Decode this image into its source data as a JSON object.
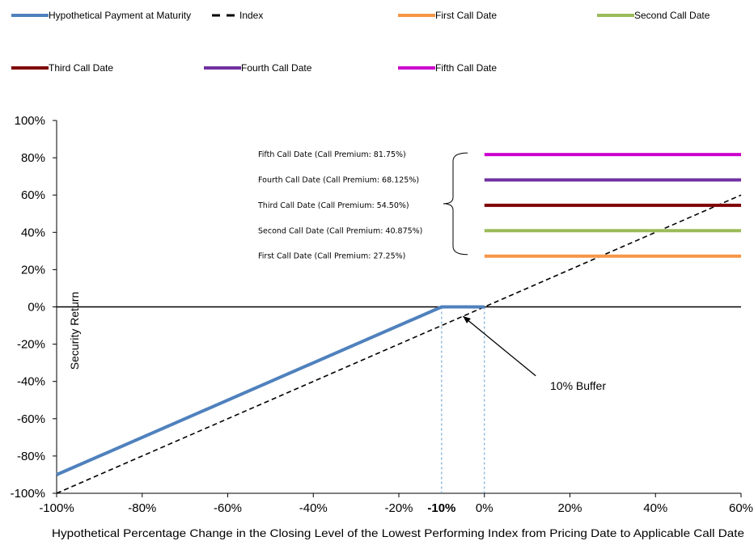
{
  "chart_data": {
    "type": "line",
    "xlabel": "Hypothetical Percentage Change in the Closing Level of the Lowest Performing Index from Pricing Date to Applicable Call Date",
    "ylabel": "Security Return",
    "xlim": [
      -100,
      60
    ],
    "ylim": [
      -100,
      100
    ],
    "x_ticks": [
      "-100%",
      "-80%",
      "-60%",
      "-40%",
      "-20%",
      "-10%",
      "0%",
      "20%",
      "40%",
      "60%"
    ],
    "y_ticks": [
      "100%",
      "80%",
      "60%",
      "40%",
      "20%",
      "0%",
      "-20%",
      "-40%",
      "-60%",
      "-80%",
      "-100%"
    ],
    "grid": false,
    "legend_position": "top",
    "series": [
      {
        "name": "Hypothetical Payment at Maturity",
        "color": "#4f81bd",
        "style": "solid",
        "points": [
          [
            -100,
            -90
          ],
          [
            -10,
            0
          ],
          [
            0,
            0
          ]
        ]
      },
      {
        "name": "Index",
        "color": "#000000",
        "style": "dashed",
        "points": [
          [
            -100,
            -100
          ],
          [
            60,
            60
          ]
        ]
      },
      {
        "name": "First Call Date",
        "color": "#f79646",
        "style": "solid",
        "points": [
          [
            0,
            27.25
          ],
          [
            60,
            27.25
          ]
        ]
      },
      {
        "name": "Second Call Date",
        "color": "#9bbb59",
        "style": "solid",
        "points": [
          [
            0,
            40.875
          ],
          [
            60,
            40.875
          ]
        ]
      },
      {
        "name": "Third Call Date",
        "color": "#7f0000",
        "style": "solid",
        "points": [
          [
            0,
            54.5
          ],
          [
            60,
            54.5
          ]
        ]
      },
      {
        "name": "Fourth Call Date",
        "color": "#7030a0",
        "style": "solid",
        "points": [
          [
            0,
            68.125
          ],
          [
            60,
            68.125
          ]
        ]
      },
      {
        "name": "Fifth Call Date",
        "color": "#cc00cc",
        "style": "solid",
        "points": [
          [
            0,
            81.75
          ],
          [
            60,
            81.75
          ]
        ]
      }
    ],
    "annotations": {
      "call_premiums": [
        "Fifth Call Date (Call Premium: 81.75%)",
        "Fourth Call Date (Call Premium: 68.125%)",
        "Third Call Date (Call Premium: 54.50%)",
        "Second Call Date (Call Premium: 40.875%)",
        "First Call Date (Call Premium: 27.25%)"
      ],
      "buffer_label": "10% Buffer",
      "buffer_arrow_from": [
        12,
        -37
      ],
      "buffer_arrow_to": [
        -5,
        -5
      ],
      "reference_x": [
        -10,
        0
      ]
    }
  }
}
